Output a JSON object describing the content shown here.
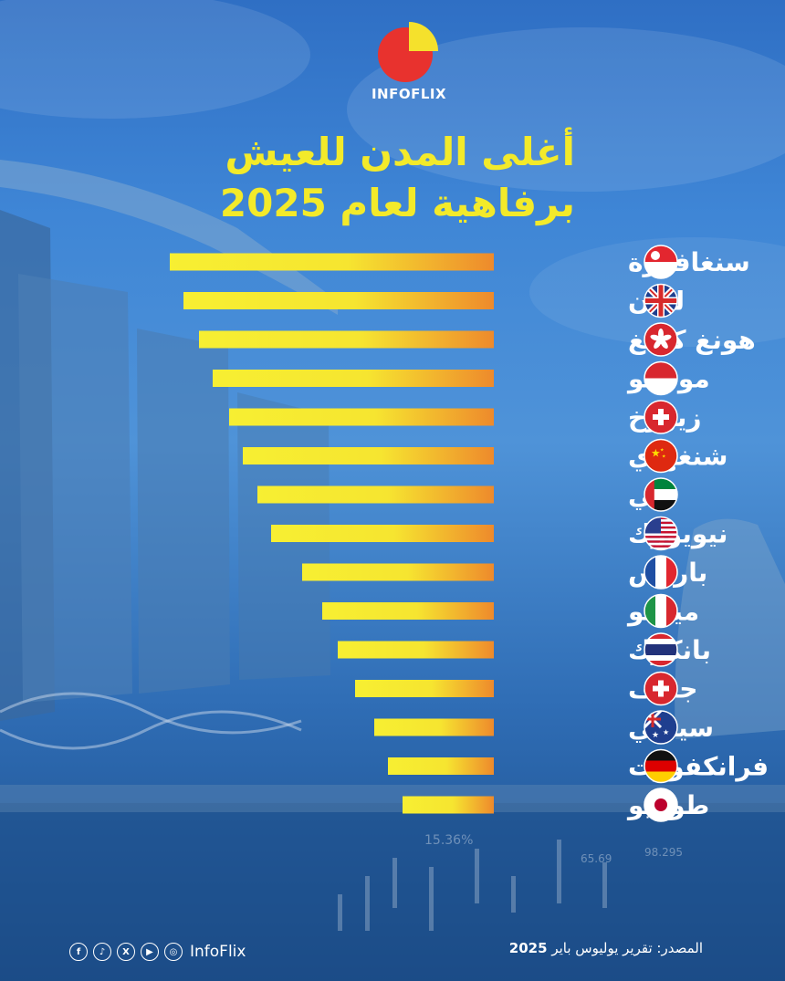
{
  "brand": {
    "name": "INFOFLIX",
    "handle": "InfoFlix"
  },
  "title": {
    "line1": "أغلى المدن للعيش",
    "line2": "برفاهية لعام 2025"
  },
  "footer": {
    "source_label": "المصدر: تقرير يوليوس باير",
    "source_year": "2025"
  },
  "social_icons": [
    "facebook-icon",
    "tiktok-icon",
    "x-icon",
    "youtube-icon",
    "instagram-icon"
  ],
  "background_labels": [
    "15.36%",
    "65.69",
    "98.295"
  ],
  "colors": {
    "title": "#f3ea2a",
    "bar_start": "#f7ef32",
    "bar_end": "#ee8a2c"
  },
  "chart_data": {
    "type": "bar",
    "orientation": "horizontal",
    "note_units": "relative rank (no numeric axis shown)",
    "categories": [
      "سنغافورة",
      "لندن",
      "هونغ كونغ",
      "موناكو",
      "زيورخ",
      "شنغهاي",
      "دبي",
      "نيويورك",
      "باريس",
      "ميلانو",
      "بانكوك",
      "جنيف",
      "سيدني",
      "فرانكفورت",
      "طوكيو"
    ],
    "flags": [
      "singapore-flag-icon",
      "uk-flag-icon",
      "hong-kong-flag-icon",
      "monaco-flag-icon",
      "switzerland-flag-icon",
      "china-flag-icon",
      "uae-flag-icon",
      "usa-flag-icon",
      "france-flag-icon",
      "italy-flag-icon",
      "thailand-flag-icon",
      "switzerland-flag-icon",
      "australia-flag-icon",
      "germany-flag-icon",
      "japan-flag-icon"
    ],
    "values": [
      355,
      340,
      323,
      308,
      290,
      275,
      259,
      244,
      210,
      188,
      171,
      152,
      131,
      116,
      100
    ],
    "xlim": [
      0,
      355
    ],
    "grid": false,
    "legend": "none"
  }
}
